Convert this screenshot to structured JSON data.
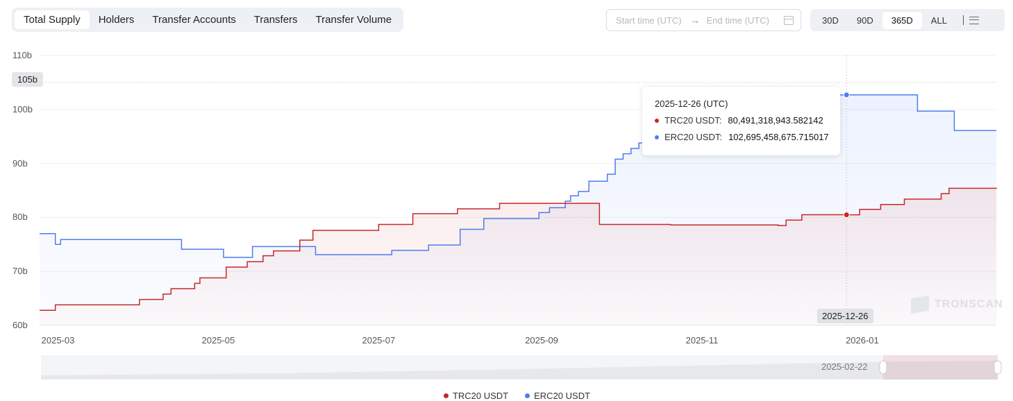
{
  "tabs": [
    {
      "label": "Total Supply",
      "active": true
    },
    {
      "label": "Holders"
    },
    {
      "label": "Transfer Accounts"
    },
    {
      "label": "Transfers"
    },
    {
      "label": "Transfer Volume"
    }
  ],
  "date_range": {
    "start_placeholder": "Start time (UTC)",
    "arrow": "→",
    "end_placeholder": "End time (UTC)"
  },
  "ranges": [
    {
      "label": "30D"
    },
    {
      "label": "90D"
    },
    {
      "label": "365D",
      "active": true
    },
    {
      "label": "ALL"
    }
  ],
  "tooltip": {
    "title": "2025-12-26 (UTC)",
    "rows": [
      {
        "label": "TRC20 USDT:",
        "value": "80,491,318,943.582142"
      },
      {
        "label": "ERC20 USDT:",
        "value": "102,695,458,675.715017"
      }
    ]
  },
  "axis_pointer": {
    "y_label": "105b",
    "x_label": "2025-12-26"
  },
  "slider": {
    "label": "2025-02-22"
  },
  "watermark": "TRONSCAN",
  "chart_data": {
    "type": "line",
    "step": true,
    "x_range": [
      "2025-02-22",
      "2026-02-21"
    ],
    "ylim": [
      60,
      110
    ],
    "unit": "b",
    "yticks": [
      "60b",
      "70b",
      "80b",
      "90b",
      "100b",
      "110b"
    ],
    "ytick_values": [
      60,
      70,
      80,
      90,
      100,
      110
    ],
    "xticks": [
      "2025-03",
      "2025-05",
      "2025-07",
      "2025-09",
      "2025-11",
      "2026-01"
    ],
    "xtick_dates": [
      "2025-03-01",
      "2025-05-01",
      "2025-07-01",
      "2025-09-01",
      "2025-11-01",
      "2026-01-01"
    ],
    "hover_date": "2025-12-26",
    "hover_value": 105,
    "legend_position": "bottom",
    "series": [
      {
        "name": "TRC20 USDT",
        "color": "#c62828",
        "points": [
          [
            "2025-02-22",
            62.8
          ],
          [
            "2025-02-28",
            63.8
          ],
          [
            "2025-04-01",
            64.8
          ],
          [
            "2025-04-10",
            65.8
          ],
          [
            "2025-04-13",
            66.8
          ],
          [
            "2025-04-22",
            67.8
          ],
          [
            "2025-04-24",
            68.8
          ],
          [
            "2025-05-04",
            70.8
          ],
          [
            "2025-05-12",
            71.8
          ],
          [
            "2025-05-18",
            72.9
          ],
          [
            "2025-05-22",
            73.8
          ],
          [
            "2025-06-01",
            75.8
          ],
          [
            "2025-06-06",
            77.6
          ],
          [
            "2025-07-01",
            78.7
          ],
          [
            "2025-07-14",
            80.7
          ],
          [
            "2025-07-31",
            81.6
          ],
          [
            "2025-08-16",
            82.6
          ],
          [
            "2025-09-23",
            78.7
          ],
          [
            "2025-10-20",
            78.6
          ],
          [
            "2025-11-30",
            78.5
          ],
          [
            "2025-12-03",
            79.5
          ],
          [
            "2025-12-09",
            80.5
          ],
          [
            "2025-12-26",
            80.49
          ],
          [
            "2025-12-31",
            81.5
          ],
          [
            "2026-01-08",
            82.4
          ],
          [
            "2026-01-17",
            83.4
          ],
          [
            "2026-01-31",
            84.4
          ],
          [
            "2026-02-03",
            85.4
          ],
          [
            "2026-02-21",
            85.3
          ]
        ]
      },
      {
        "name": "ERC20 USDT",
        "color": "#4e7cf0",
        "points": [
          [
            "2025-02-22",
            77.0
          ],
          [
            "2025-02-28",
            75.0
          ],
          [
            "2025-03-02",
            75.9
          ],
          [
            "2025-04-17",
            74.1
          ],
          [
            "2025-05-03",
            72.6
          ],
          [
            "2025-05-14",
            74.6
          ],
          [
            "2025-06-07",
            73.1
          ],
          [
            "2025-07-06",
            73.9
          ],
          [
            "2025-07-20",
            74.9
          ],
          [
            "2025-08-01",
            77.8
          ],
          [
            "2025-08-10",
            79.8
          ],
          [
            "2025-08-31",
            80.9
          ],
          [
            "2025-09-04",
            81.8
          ],
          [
            "2025-09-10",
            83.0
          ],
          [
            "2025-09-12",
            84.0
          ],
          [
            "2025-09-15",
            84.8
          ],
          [
            "2025-09-19",
            86.7
          ],
          [
            "2025-09-26",
            88.0
          ],
          [
            "2025-09-29",
            90.8
          ],
          [
            "2025-10-02",
            91.8
          ],
          [
            "2025-10-05",
            92.8
          ],
          [
            "2025-10-08",
            93.8
          ],
          [
            "2025-10-10",
            94.8
          ],
          [
            "2025-10-13",
            96.7
          ],
          [
            "2025-11-05",
            98.8
          ],
          [
            "2025-11-25",
            100.8
          ],
          [
            "2025-12-10",
            102.7
          ],
          [
            "2025-12-26",
            102.7
          ],
          [
            "2026-01-22",
            99.7
          ],
          [
            "2026-02-05",
            96.1
          ],
          [
            "2026-02-21",
            96.1
          ]
        ]
      }
    ]
  }
}
